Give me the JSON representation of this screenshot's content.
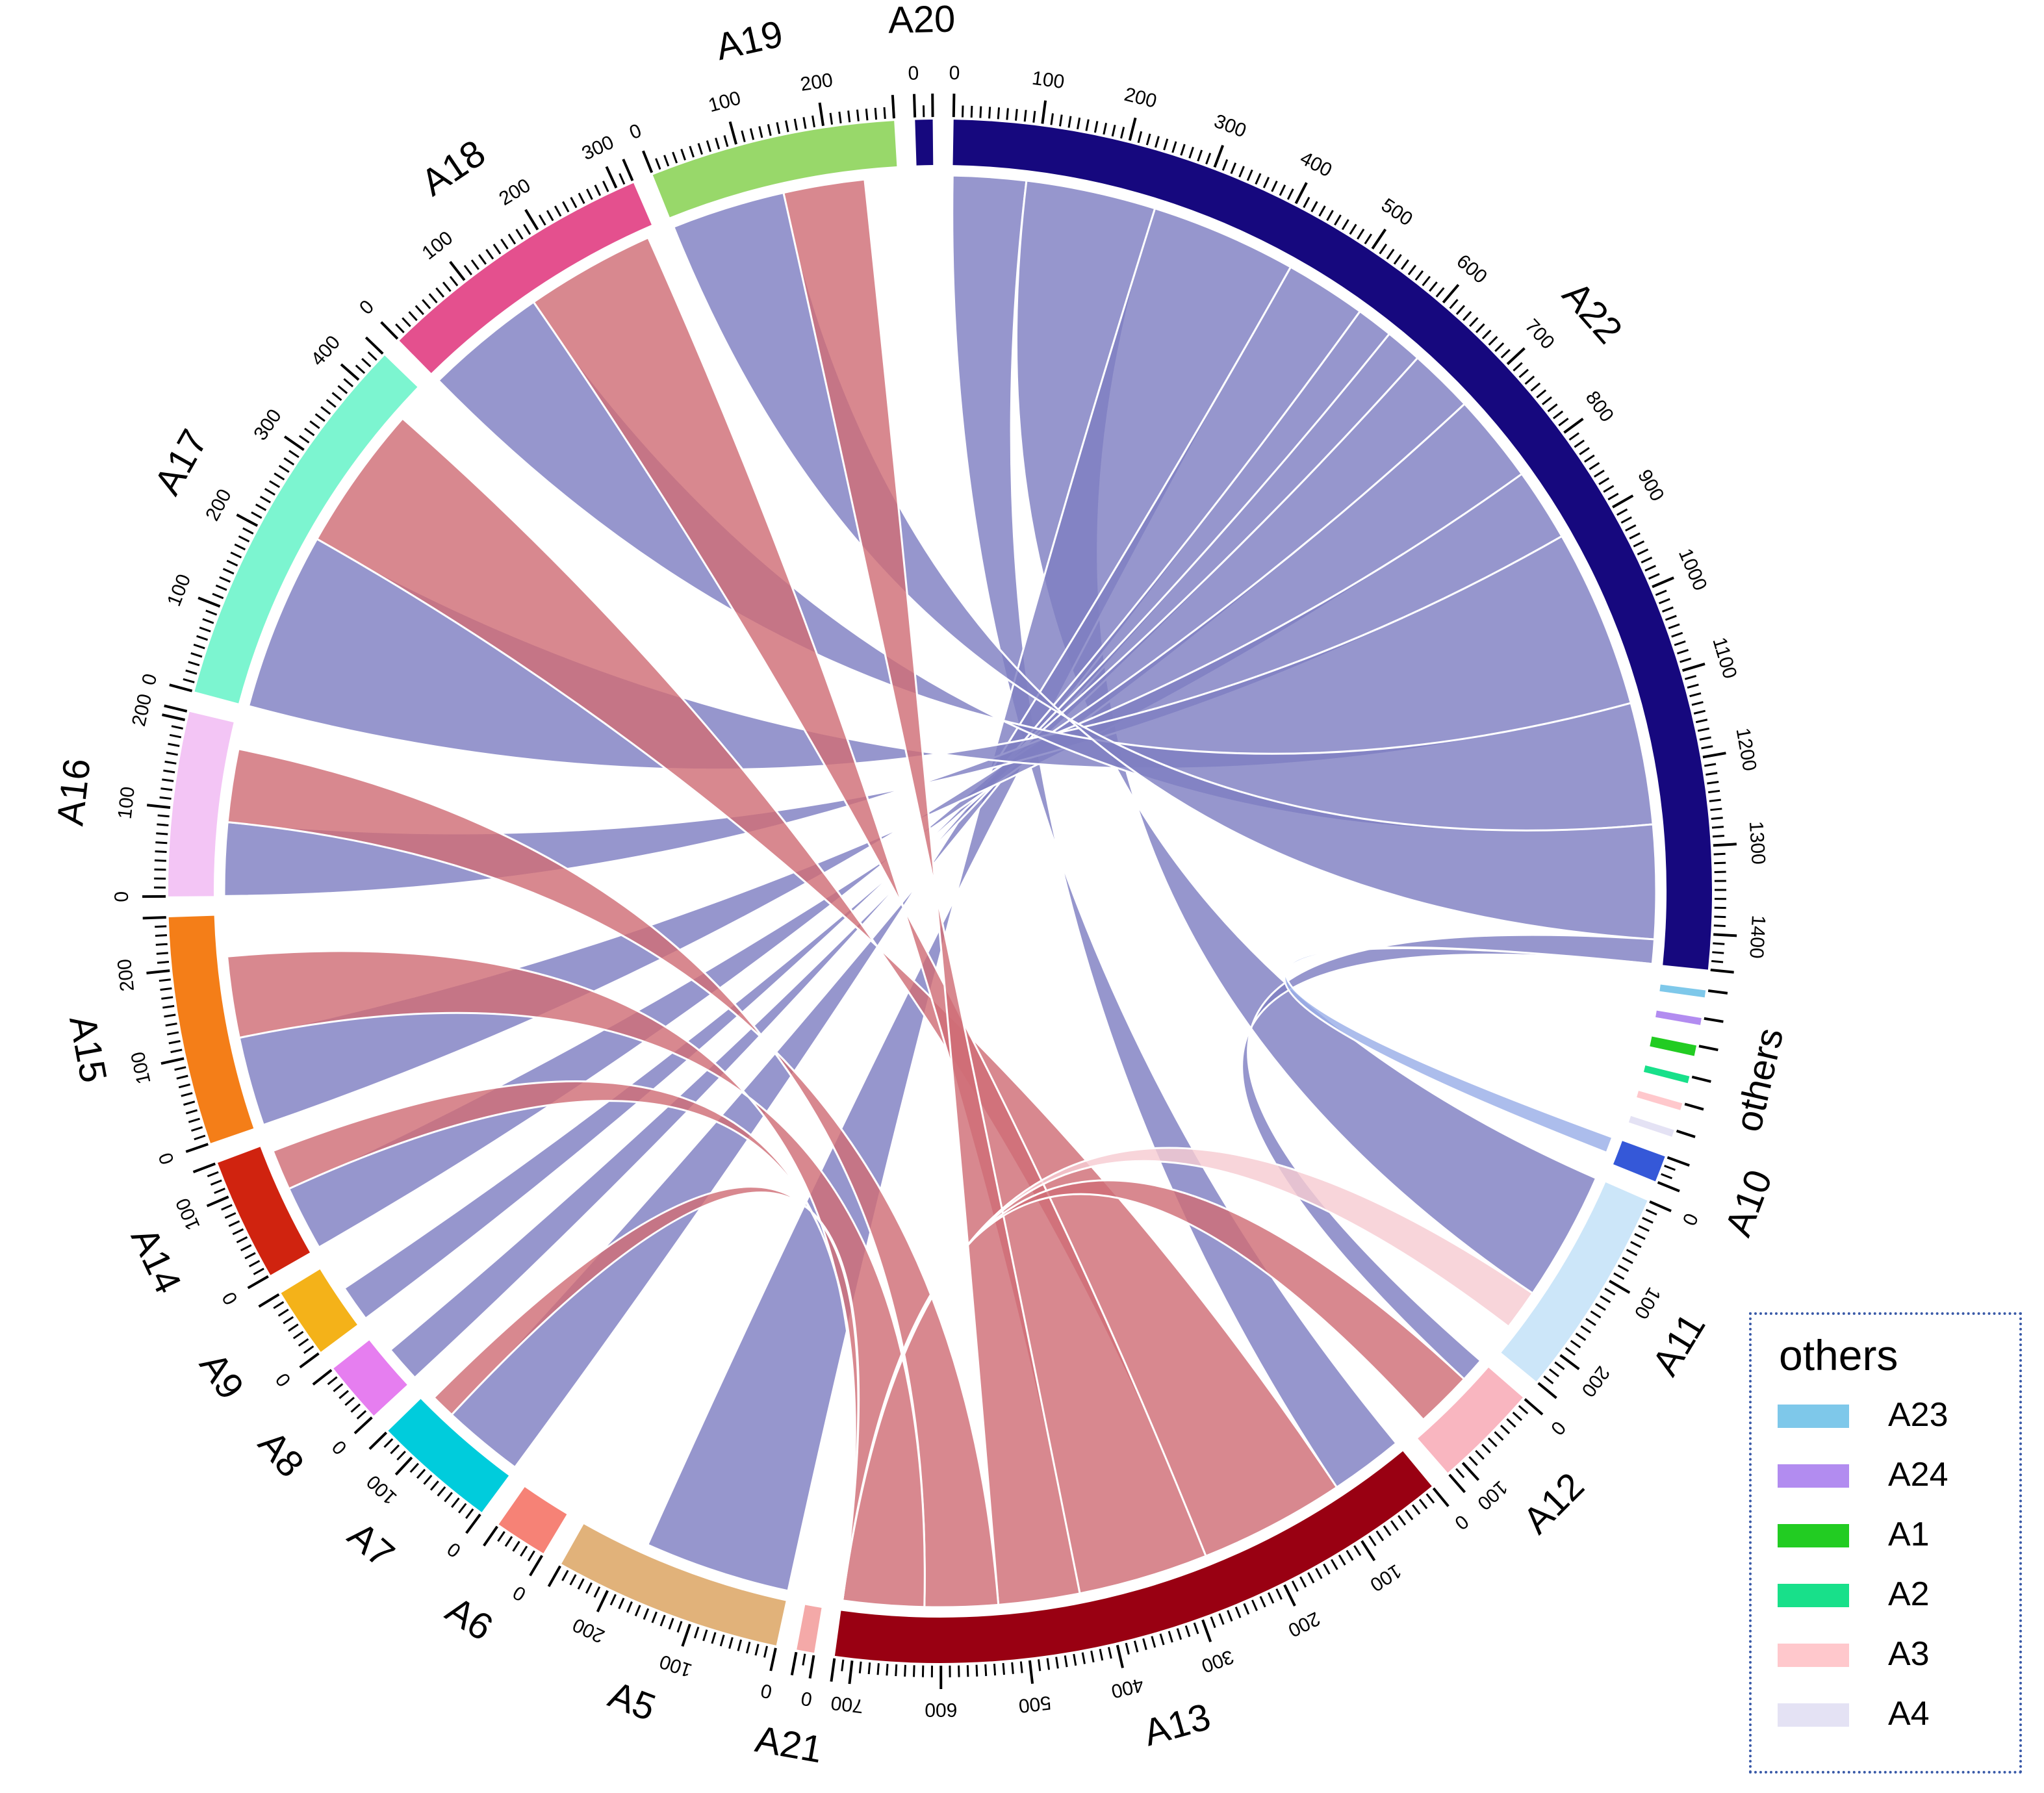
{
  "chart_data": {
    "type": "chord",
    "title": "",
    "unit_total": 5120,
    "sectors": [
      {
        "id": "A22",
        "size": 1440,
        "color": "#16087e",
        "tick_step": 100,
        "label_ticks": true
      },
      {
        "id": "A23",
        "size": 8,
        "color": "#7ec8ea",
        "group": "others"
      },
      {
        "id": "A24",
        "size": 8,
        "color": "#b28cf0",
        "group": "others"
      },
      {
        "id": "A1",
        "size": 12,
        "color": "#22cc22",
        "group": "others"
      },
      {
        "id": "A2",
        "size": 8,
        "color": "#18e08a",
        "group": "others"
      },
      {
        "id": "A3",
        "size": 8,
        "color": "#ffc8cc",
        "group": "others"
      },
      {
        "id": "A4",
        "size": 8,
        "color": "#e4e2f4",
        "group": "others"
      },
      {
        "id": "A10",
        "size": 30,
        "color": "#3558d8"
      },
      {
        "id": "A11",
        "size": 240,
        "color": "#cce6f9",
        "tick_step": 100,
        "label_ticks": true
      },
      {
        "id": "A12",
        "size": 120,
        "color": "#f9b6c0",
        "tick_step": 100,
        "label_ticks": true
      },
      {
        "id": "A13",
        "size": 720,
        "color": "#990012",
        "tick_step": 100,
        "label_ticks": true
      },
      {
        "id": "A21",
        "size": 20,
        "color": "#f4a9a8",
        "tick_step": 100,
        "label_ticks": true
      },
      {
        "id": "A5",
        "size": 260,
        "color": "#e1b27a",
        "tick_step": 100,
        "label_ticks": true
      },
      {
        "id": "A6",
        "size": 60,
        "color": "#f68276",
        "tick_step": 100,
        "label_ticks": true
      },
      {
        "id": "A7",
        "size": 140,
        "color": "#00ccdc",
        "tick_step": 100,
        "label_ticks": true
      },
      {
        "id": "A8",
        "size": 70,
        "color": "#e67ef0",
        "tick_step": 100,
        "label_ticks": true
      },
      {
        "id": "A9",
        "size": 80,
        "color": "#f4b219",
        "tick_step": 100,
        "label_ticks": true
      },
      {
        "id": "A14",
        "size": 140,
        "color": "#d0230f",
        "tick_step": 100,
        "label_ticks": true
      },
      {
        "id": "A15",
        "size": 260,
        "color": "#f47e18",
        "tick_step": 100,
        "label_ticks": true
      },
      {
        "id": "A16",
        "size": 210,
        "color": "#f3c5f5",
        "tick_step": 100,
        "label_ticks": true
      },
      {
        "id": "A17",
        "size": 440,
        "color": "#7cf5d0",
        "tick_step": 100,
        "label_ticks": true
      },
      {
        "id": "A18",
        "size": 320,
        "color": "#e4508e",
        "tick_step": 100,
        "label_ticks": true
      },
      {
        "id": "A19",
        "size": 280,
        "color": "#98d86a",
        "tick_step": 100,
        "label_ticks": true
      },
      {
        "id": "A20",
        "size": 20,
        "color": "#16087e",
        "tick_step": 100,
        "label_ticks": true
      }
    ],
    "links": [
      {
        "from": "A22",
        "to": "A13",
        "value": 90,
        "color": "#7f7fc2"
      },
      {
        "from": "A22",
        "to": "A11",
        "value": 160,
        "color": "#7f7fc2"
      },
      {
        "from": "A22",
        "to": "A5",
        "value": 180,
        "color": "#7f7fc2"
      },
      {
        "from": "A22",
        "to": "A7",
        "value": 100,
        "color": "#7f7fc2"
      },
      {
        "from": "A22",
        "to": "A8",
        "value": 45,
        "color": "#7f7fc2"
      },
      {
        "from": "A22",
        "to": "A9",
        "value": 45,
        "color": "#7f7fc2"
      },
      {
        "from": "A22",
        "to": "A14",
        "value": 80,
        "color": "#7f7fc2"
      },
      {
        "from": "A22",
        "to": "A15",
        "value": 110,
        "color": "#7f7fc2"
      },
      {
        "from": "A22",
        "to": "A16",
        "value": 90,
        "color": "#7f7fc2"
      },
      {
        "from": "A22",
        "to": "A17",
        "value": 220,
        "color": "#7f7fc2"
      },
      {
        "from": "A22",
        "to": "A18",
        "value": 150,
        "color": "#7f7fc2"
      },
      {
        "from": "A22",
        "to": "A19",
        "value": 140,
        "color": "#7f7fc2"
      },
      {
        "from": "A22",
        "to": "A12",
        "value": 30,
        "color": "#7f7fc2"
      },
      {
        "from": "A13",
        "to": "A17",
        "value": 180,
        "color": "#cf6e76"
      },
      {
        "from": "A13",
        "to": "A18",
        "value": 160,
        "color": "#cf6e76"
      },
      {
        "from": "A13",
        "to": "A19",
        "value": 100,
        "color": "#cf6e76"
      },
      {
        "from": "A13",
        "to": "A16",
        "value": 90,
        "color": "#cf6e76"
      },
      {
        "from": "A13",
        "to": "A15",
        "value": 100,
        "color": "#cf6e76"
      },
      {
        "from": "A13",
        "to": "A14",
        "value": 50,
        "color": "#cf6e76"
      },
      {
        "from": "A13",
        "to": "A7",
        "value": 30,
        "color": "#cf6e76"
      },
      {
        "from": "A13",
        "to": "A11",
        "value": 50,
        "color": "#f7ccd2"
      },
      {
        "from": "A13",
        "to": "A12",
        "value": 70,
        "color": "#cf6e76"
      },
      {
        "from": "A22",
        "to": "A10",
        "value": 20,
        "color": "#9aaee8"
      }
    ],
    "legend": {
      "title": "others",
      "items": [
        {
          "label": "A23",
          "color": "#7ec8ea"
        },
        {
          "label": "A24",
          "color": "#b28cf0"
        },
        {
          "label": "A1",
          "color": "#22cc22"
        },
        {
          "label": "A2",
          "color": "#18e08a"
        },
        {
          "label": "A3",
          "color": "#ffc8cc"
        },
        {
          "label": "A4",
          "color": "#e4e2f4"
        }
      ]
    },
    "others_label": "others"
  }
}
